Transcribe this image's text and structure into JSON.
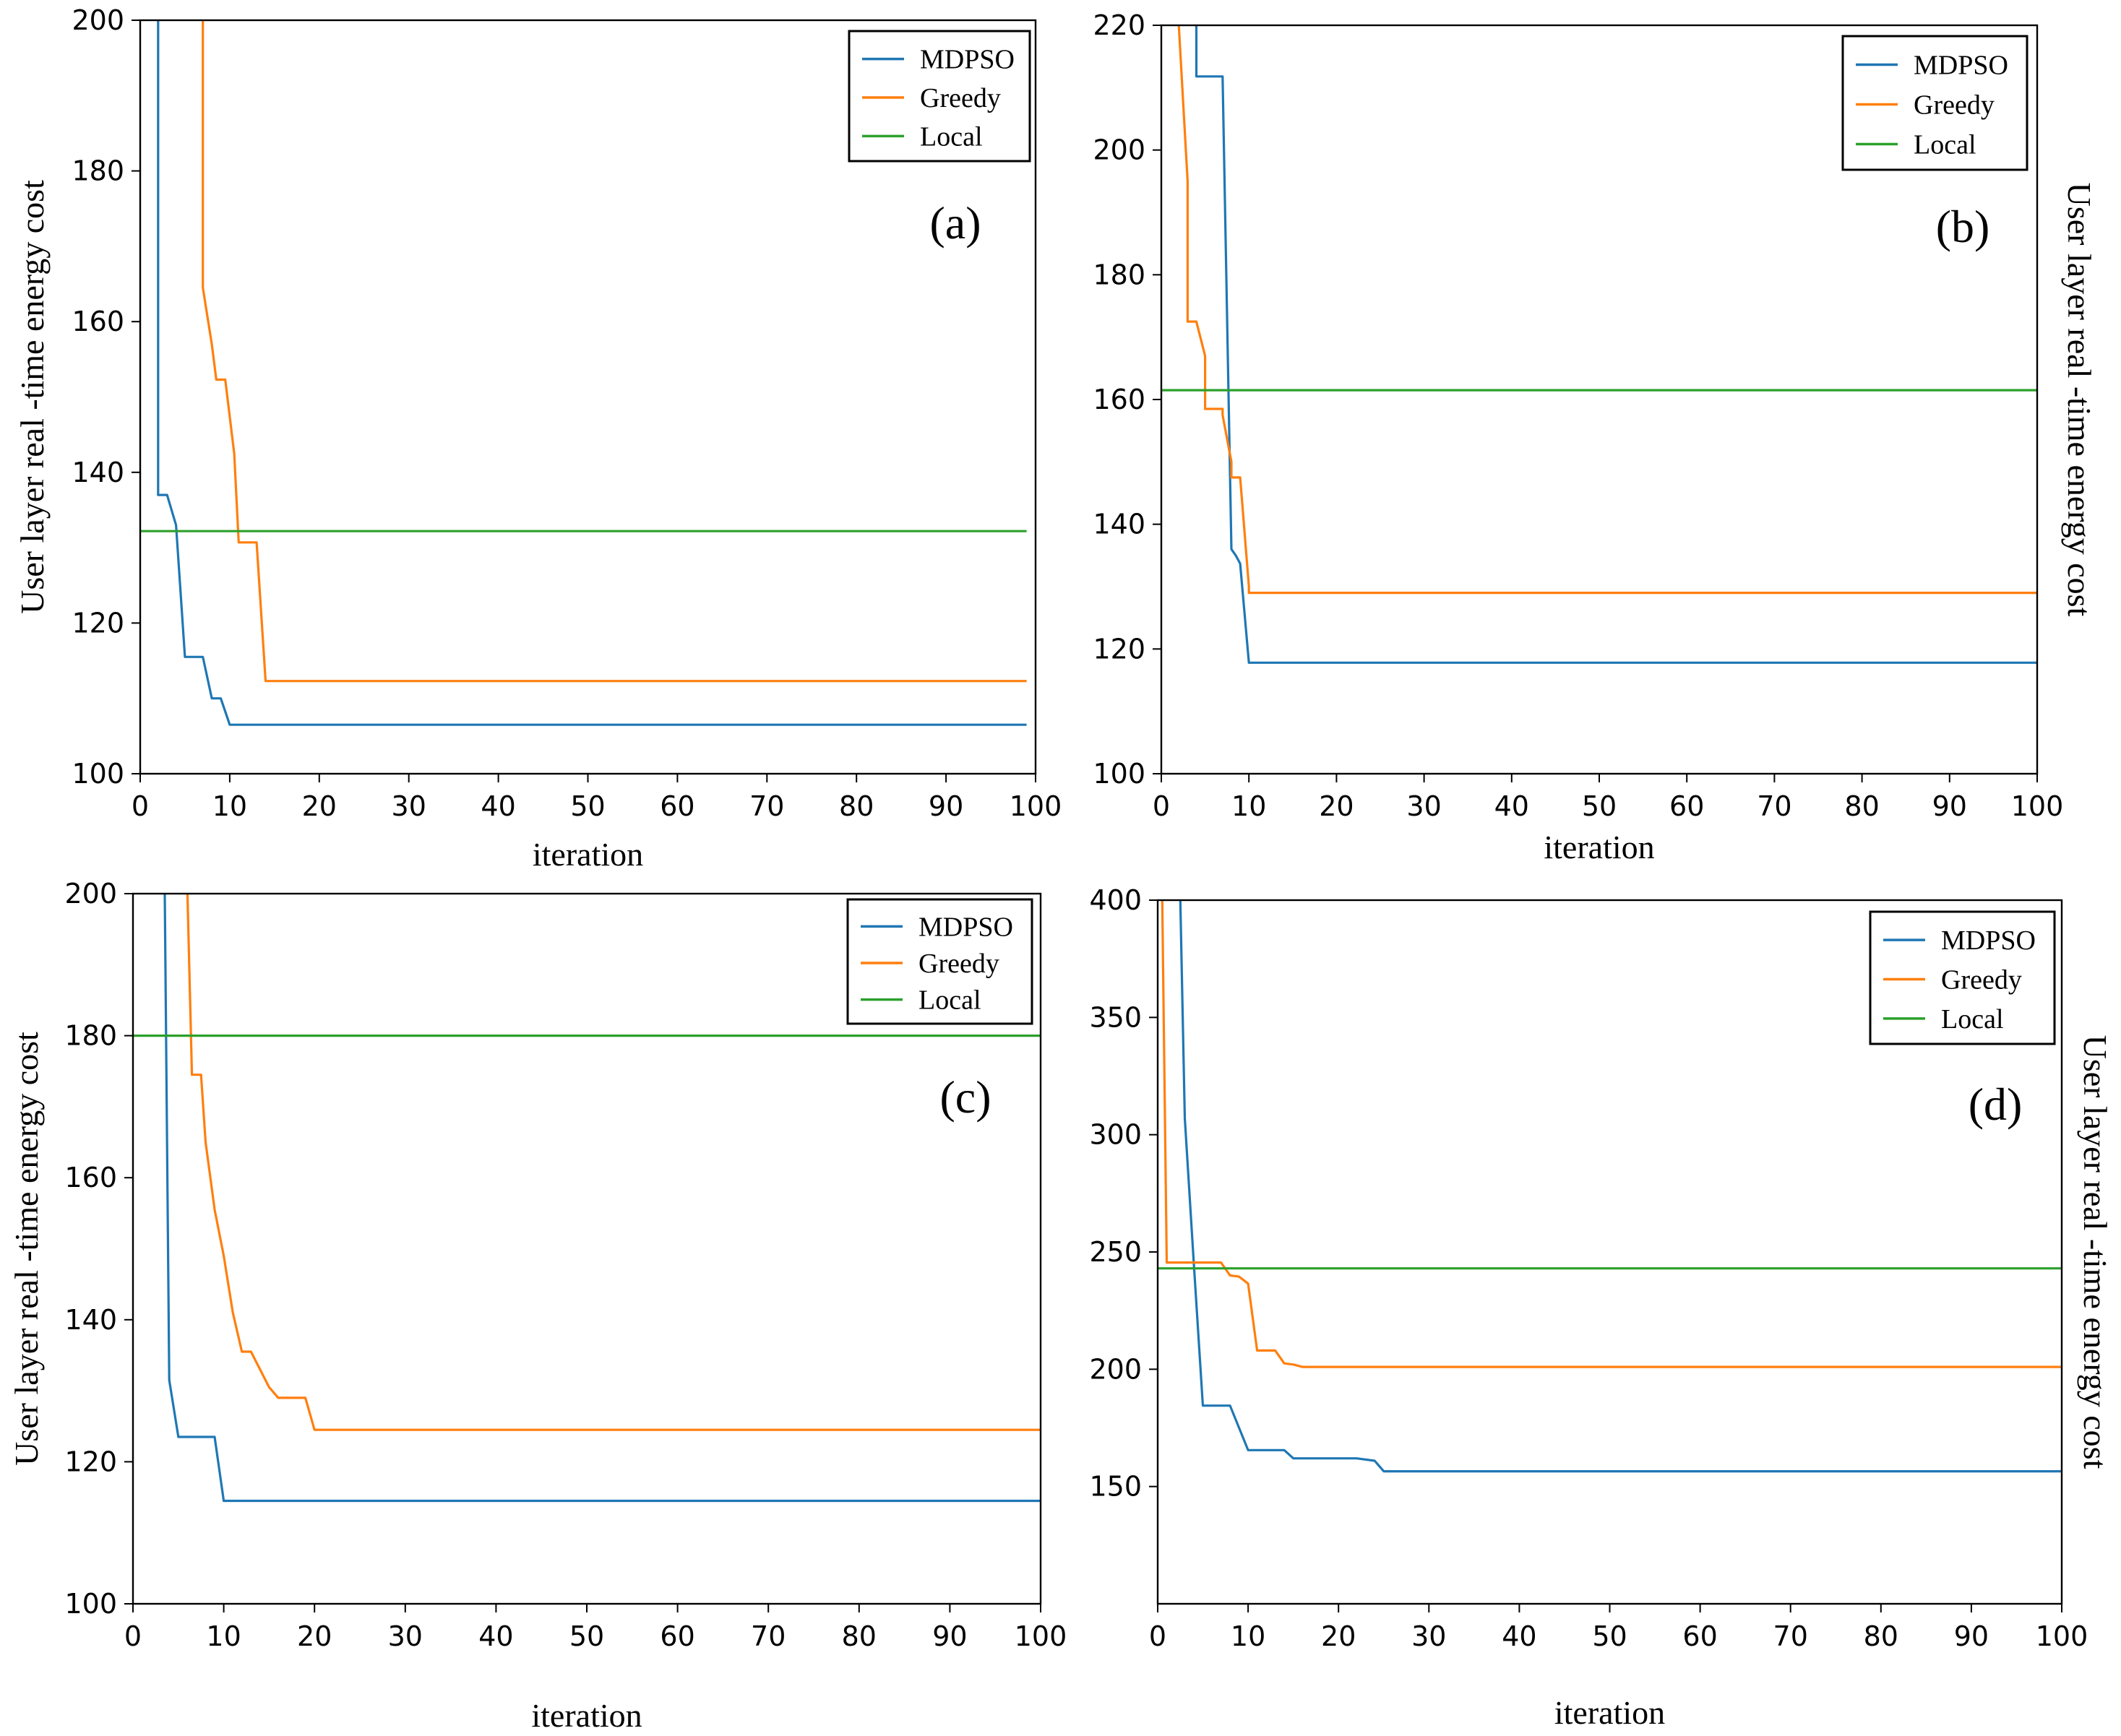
{
  "colors": {
    "MDPSO": "#1f77b4",
    "Greedy": "#ff7f0e",
    "Local": "#2ca02c"
  },
  "chart_data": [
    {
      "type": "line",
      "panel_label": "(a)",
      "xlabel": "iteration",
      "ylabel": "User layer real -time energy cost",
      "xlim": [
        0,
        100
      ],
      "ylim": [
        100,
        200
      ],
      "xticks": [
        0,
        10,
        20,
        30,
        40,
        50,
        60,
        70,
        80,
        90,
        100
      ],
      "yticks": [
        100,
        120,
        140,
        160,
        180,
        200
      ],
      "legend": "top-right",
      "series": [
        {
          "name": "MDPSO",
          "x": [
            2,
            2,
            3,
            4,
            5,
            7,
            8,
            9,
            10,
            99
          ],
          "y": [
            200,
            137,
            137,
            133,
            115.5,
            115.5,
            110,
            110,
            106.5,
            106.5
          ]
        },
        {
          "name": "Greedy",
          "x": [
            7,
            7,
            8,
            8.5,
            9.5,
            10.5,
            11,
            13,
            14,
            99
          ],
          "y": [
            200,
            164.5,
            157,
            152.3,
            152.3,
            142.5,
            130.7,
            130.7,
            112.3,
            112.3
          ]
        },
        {
          "name": "Local",
          "x": [
            0,
            99
          ],
          "y": [
            132.2,
            132.2
          ]
        }
      ]
    },
    {
      "type": "line",
      "panel_label": "(b)",
      "xlabel": "iteration",
      "ylabel": "User layer real -time energy cost",
      "xlim": [
        0,
        100
      ],
      "ylim": [
        100,
        220
      ],
      "xticks": [
        0,
        10,
        20,
        30,
        40,
        50,
        60,
        70,
        80,
        90,
        100
      ],
      "yticks": [
        100,
        120,
        140,
        160,
        180,
        200,
        220
      ],
      "legend": "top-right",
      "series": [
        {
          "name": "MDPSO",
          "x": [
            4,
            4,
            5,
            7,
            8,
            8.5,
            9,
            10,
            100
          ],
          "y": [
            220,
            211.8,
            211.8,
            211.8,
            136,
            135,
            133.7,
            117.8,
            117.8
          ]
        },
        {
          "name": "Greedy",
          "x": [
            2,
            3,
            3,
            4,
            5,
            5,
            7,
            7,
            8,
            8,
            9,
            10,
            10,
            100
          ],
          "y": [
            220,
            195,
            172.5,
            172.5,
            167,
            158.5,
            158.5,
            157.5,
            150,
            147.5,
            147.5,
            130,
            129,
            129
          ]
        },
        {
          "name": "Local",
          "x": [
            0,
            100
          ],
          "y": [
            161.5,
            161.5
          ]
        }
      ]
    },
    {
      "type": "line",
      "panel_label": "(c)",
      "xlabel": "iteration",
      "ylabel": "User layer real -time energy cost",
      "xlim": [
        0,
        100
      ],
      "ylim": [
        100,
        200
      ],
      "xticks": [
        0,
        10,
        20,
        30,
        40,
        50,
        60,
        70,
        80,
        90,
        100
      ],
      "yticks": [
        100,
        120,
        140,
        160,
        180,
        200
      ],
      "legend": "top-right",
      "series": [
        {
          "name": "MDPSO",
          "x": [
            3.5,
            4,
            5,
            9,
            10,
            100
          ],
          "y": [
            200,
            131.5,
            123.5,
            123.5,
            114.5,
            114.5
          ]
        },
        {
          "name": "Greedy",
          "x": [
            6,
            6.5,
            7.5,
            8,
            9,
            10,
            11,
            12,
            13,
            15,
            16,
            19,
            20,
            100
          ],
          "y": [
            200,
            174.5,
            174.5,
            165,
            155.5,
            149,
            141,
            135.5,
            135.5,
            130.5,
            129,
            129,
            124.5,
            124.5
          ]
        },
        {
          "name": "Local",
          "x": [
            0,
            100
          ],
          "y": [
            180,
            180
          ]
        }
      ]
    },
    {
      "type": "line",
      "panel_label": "(d)",
      "xlabel": "iteration",
      "ylabel": "User layer real -time energy cost",
      "xlim": [
        0,
        100
      ],
      "ylim": [
        100,
        400
      ],
      "xticks": [
        0,
        10,
        20,
        30,
        40,
        50,
        60,
        70,
        80,
        90,
        100
      ],
      "yticks": [
        150,
        200,
        250,
        300,
        350,
        400
      ],
      "legend": "top-right",
      "series": [
        {
          "name": "MDPSO",
          "x": [
            2.5,
            3,
            4,
            5,
            8,
            10,
            12,
            14,
            15,
            22,
            24,
            25,
            100
          ],
          "y": [
            400,
            307,
            245,
            184.5,
            184.5,
            165.5,
            165.5,
            165.5,
            162,
            162,
            161,
            156.5,
            156.5
          ]
        },
        {
          "name": "Greedy",
          "x": [
            0.5,
            1,
            5,
            7,
            8,
            9,
            10,
            11,
            12,
            13,
            14,
            15,
            16,
            100
          ],
          "y": [
            400,
            245.5,
            245.5,
            245.5,
            240,
            239.5,
            236.5,
            208,
            208,
            208,
            202.5,
            202,
            201,
            201
          ]
        },
        {
          "name": "Local",
          "x": [
            0,
            100
          ],
          "y": [
            243,
            243
          ]
        }
      ]
    }
  ]
}
